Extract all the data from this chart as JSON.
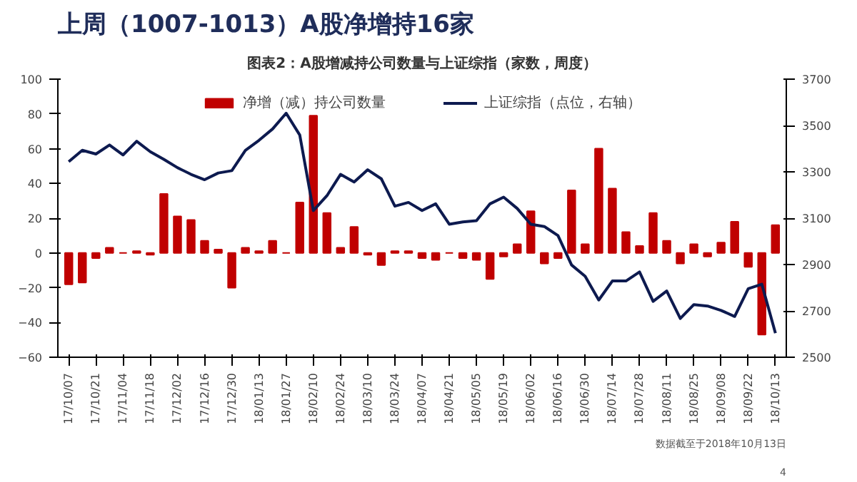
{
  "chart_data": {
    "type": "bar",
    "title": "上周（1007-1013）A股净增持16家",
    "subtitle": "图表2：A股增减持公司数量与上证综指（家数，周度）",
    "categories": [
      "17/10/07",
      null,
      "17/10/21",
      null,
      "17/11/04",
      null,
      "17/11/18",
      null,
      "17/12/02",
      null,
      "17/12/16",
      null,
      "17/12/30",
      null,
      "18/01/13",
      null,
      "18/01/27",
      null,
      "18/02/10",
      null,
      "18/02/24",
      null,
      "18/03/10",
      null,
      "18/03/24",
      null,
      "18/04/07",
      null,
      "18/04/21",
      null,
      "18/05/05",
      null,
      "18/05/19",
      null,
      "18/06/02",
      null,
      "18/06/16",
      null,
      "18/06/30",
      null,
      "18/07/14",
      null,
      "18/07/28",
      null,
      "18/08/11",
      null,
      "18/08/25",
      null,
      "18/09/08",
      null,
      "18/09/22",
      null,
      "18/10/13"
    ],
    "series": [
      {
        "name": "净增（减）持公司数量",
        "color": "#c00000",
        "values": [
          -18,
          -17,
          -3,
          3,
          0,
          1,
          -1,
          34,
          21,
          19,
          7,
          2,
          -20,
          3,
          1,
          7,
          0,
          29,
          79,
          23,
          3,
          15,
          -1,
          -7,
          1,
          1,
          -3,
          -4,
          0,
          -3,
          -4,
          -15,
          -2,
          5,
          24,
          -6,
          -3,
          36,
          5,
          60,
          37,
          12,
          4,
          23,
          7,
          -6,
          5,
          -2,
          6,
          18,
          -8,
          -47,
          16
        ]
      },
      {
        "name": "上证综指（点位，右轴）",
        "type": "line",
        "axis": "y2",
        "color": "#0d1a4f",
        "values": [
          3344,
          3393,
          3377,
          3416,
          3373,
          3432,
          3387,
          3354,
          3318,
          3289,
          3266,
          3295,
          3305,
          3393,
          3436,
          3485,
          3553,
          3459,
          3133,
          3197,
          3289,
          3256,
          3309,
          3270,
          3152,
          3168,
          3133,
          3162,
          3074,
          3084,
          3089,
          3162,
          3191,
          3142,
          3074,
          3064,
          3025,
          2898,
          2849,
          2747,
          2829,
          2829,
          2868,
          2741,
          2786,
          2667,
          2727,
          2721,
          2702,
          2676,
          2796,
          2815,
          2604
        ]
      }
    ],
    "ylim": [
      -60,
      100
    ],
    "yticks": [
      -60,
      -40,
      -20,
      0,
      20,
      40,
      60,
      80,
      100
    ],
    "y2lim": [
      2500,
      3700
    ],
    "y2ticks": [
      2500,
      2700,
      2900,
      3100,
      3300,
      3500,
      3700
    ],
    "legend": "top",
    "grid": false,
    "annotations": [
      "数据截至于2018年10月13日",
      "4"
    ]
  }
}
